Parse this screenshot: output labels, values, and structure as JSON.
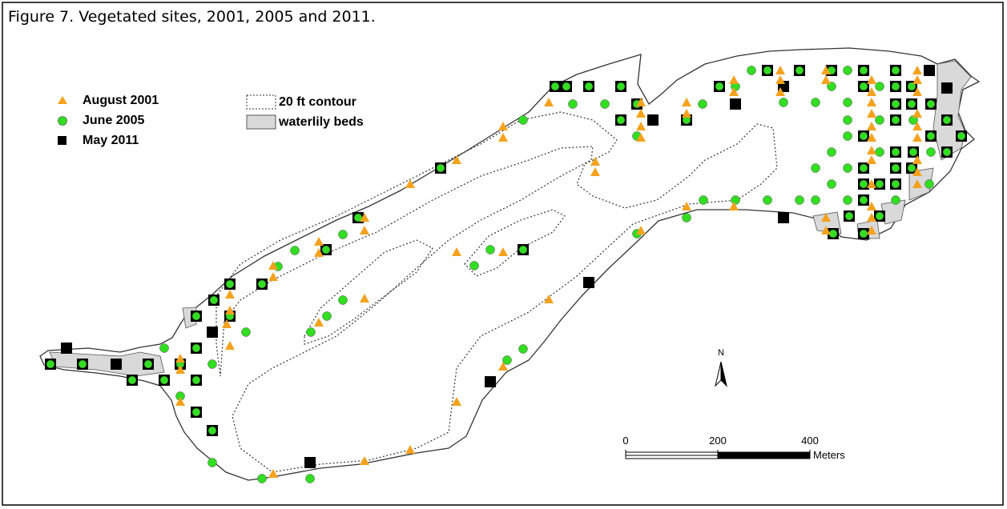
{
  "figure": {
    "title": "Figure 7.  Vegetated sites, 2001, 2005 and 2011.",
    "legend": [
      "August 2001",
      "June 2005",
      "May 2011"
    ],
    "contour_legend": "20 ft contour",
    "waterlily_legend": "waterlily beds",
    "north": "N",
    "scale_bar": {
      "ticks": [
        0,
        200,
        400
      ],
      "unit": "Meters"
    }
  }
}
